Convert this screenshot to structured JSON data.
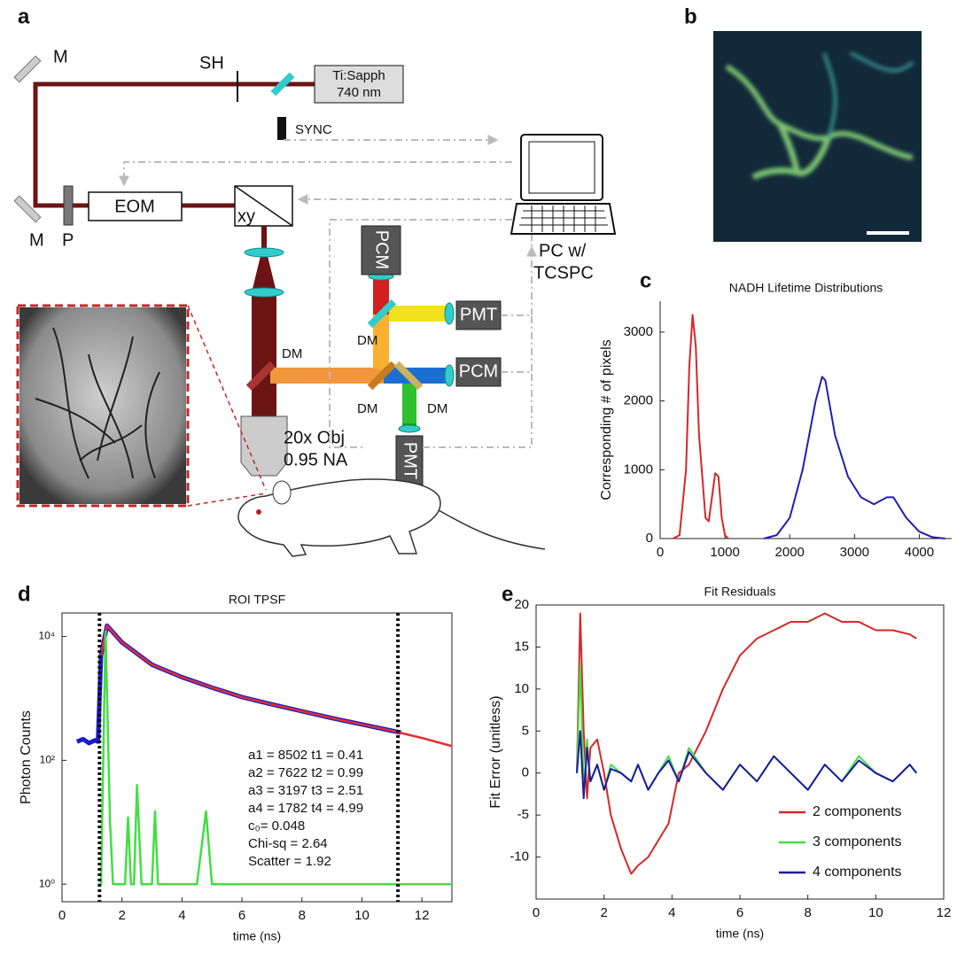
{
  "panel_labels": [
    "a",
    "b",
    "c",
    "d",
    "e"
  ],
  "diagram": {
    "labels": [
      "M",
      "M",
      "SH",
      "Ti:Sapph",
      "740 nm",
      "SYNC",
      "EOM",
      "P",
      "xy",
      "PCM",
      "PMT",
      "PCM",
      "PMT",
      "DM",
      "DM",
      "DM",
      "DM",
      "PC w/",
      "TCSPC",
      "20x Obj",
      "0.95 NA"
    ]
  },
  "chart_data": [
    {
      "type": "line",
      "title": "NADH Lifetime Distributions",
      "y_label": "Corresponding # of pixels",
      "xlim": [
        0,
        4500
      ],
      "xticks": [
        0,
        1000,
        2000,
        3000,
        4000
      ],
      "ylim": [
        0,
        3450
      ],
      "yticks": [
        0,
        1000,
        2000,
        3000
      ],
      "box": false,
      "series": [
        {
          "color": "#d62728",
          "x": [
            200,
            300,
            400,
            450,
            500,
            550,
            600,
            700,
            750,
            800,
            850,
            900,
            950,
            1000,
            1050
          ],
          "values": [
            0,
            50,
            1000,
            2500,
            3250,
            2800,
            1500,
            300,
            250,
            600,
            950,
            900,
            300,
            50,
            0
          ]
        },
        {
          "color": "#1f1fb4",
          "x": [
            1600,
            1800,
            2000,
            2200,
            2400,
            2500,
            2550,
            2700,
            2900,
            3100,
            3300,
            3500,
            3600,
            3800,
            4000,
            4200,
            4400
          ],
          "values": [
            0,
            50,
            300,
            1000,
            2000,
            2350,
            2300,
            1500,
            900,
            600,
            500,
            600,
            600,
            300,
            100,
            20,
            0
          ]
        }
      ]
    },
    {
      "type": "line",
      "title": "ROI TPSF",
      "x_label": "time (ns)",
      "y_label": "Photon Counts",
      "xlim": [
        0,
        13
      ],
      "xticks": [
        0,
        2,
        4,
        6,
        8,
        10,
        12
      ],
      "ylim": [
        0.52,
        24000
      ],
      "log_y": true,
      "yticks": [
        {
          "value": 1,
          "label": "10⁰"
        },
        {
          "value": 100,
          "label": "10²"
        },
        {
          "value": 10000,
          "label": "10⁴"
        }
      ],
      "box": true,
      "vlines": [
        1.25,
        11.2
      ],
      "annotations": [
        "a1 = 8502 t1 = 0.41",
        "a2 = 7622 t2 = 0.99",
        "a3 = 3197 t3 = 2.51",
        "a4 = 1782 t4 = 4.99",
        "c₀= 0.048",
        "Chi-sq = 2.64",
        "Scatter = 1.92"
      ],
      "series": [
        {
          "color": "#1a1acc",
          "width": 5,
          "x": [
            0.5,
            0.7,
            0.9,
            1.1,
            1.2,
            1.3,
            1.5,
            2,
            3,
            4,
            5,
            6,
            7,
            8,
            9,
            10,
            11,
            11.3
          ],
          "values": [
            200,
            220,
            190,
            210,
            200,
            5000,
            15000,
            8000,
            3500,
            2200,
            1500,
            1050,
            800,
            620,
            480,
            380,
            300,
            280
          ]
        },
        {
          "color": "#e03030",
          "width": 2.5,
          "x": [
            1.3,
            1.5,
            2,
            3,
            4,
            5,
            6,
            7,
            8,
            9,
            10,
            11,
            12,
            13
          ],
          "values": [
            5000,
            15000,
            8000,
            3500,
            2200,
            1500,
            1050,
            800,
            620,
            480,
            380,
            300,
            230,
            170
          ]
        },
        {
          "color": "#44dd44",
          "width": 2.5,
          "x": [
            1.2,
            1.3,
            1.45,
            1.6,
            1.7,
            2.1,
            2.2,
            2.3,
            2.4,
            2.5,
            2.65,
            3.0,
            3.1,
            3.2,
            4.5,
            4.8,
            5.0,
            13
          ],
          "values": [
            1,
            1,
            12000,
            10,
            1,
            1,
            12,
            1,
            1,
            40,
            1,
            1,
            15,
            1,
            1,
            15,
            1,
            1
          ]
        }
      ]
    },
    {
      "type": "line",
      "title": "Fit Residuals",
      "x_label": "time (ns)",
      "y_label": "Fit Error (unitless)",
      "xlim": [
        0,
        12
      ],
      "xticks": [
        0,
        2,
        4,
        6,
        8,
        10,
        12
      ],
      "ylim": [
        -15,
        20
      ],
      "yticks": [
        -10,
        -5,
        0,
        5,
        10,
        15,
        20
      ],
      "box": true,
      "legend": "lower right",
      "x": [
        1.2,
        1.3,
        1.4,
        1.5,
        1.6,
        1.8,
        2.0,
        2.2,
        2.5,
        2.8,
        3.0,
        3.3,
        3.6,
        3.9,
        4.2,
        4.5,
        5,
        5.5,
        6,
        6.5,
        7,
        7.5,
        8,
        8.5,
        9,
        9.5,
        10,
        10.5,
        11,
        11.2
      ],
      "series": [
        {
          "name": "2 components",
          "color": "#d62728",
          "values": [
            0,
            19,
            5,
            -3,
            3,
            4,
            0,
            -5,
            -9,
            -12,
            -11,
            -10,
            -8,
            -6,
            0,
            1,
            5,
            10,
            14,
            16,
            17,
            18,
            18,
            19,
            18,
            18,
            17,
            17,
            16.5,
            16
          ]
        },
        {
          "name": "3 components",
          "color": "#44dd44",
          "values": [
            0,
            13,
            -2,
            4,
            -1,
            1,
            -2,
            1,
            0,
            -1,
            1,
            -2,
            0,
            2,
            -1,
            3,
            0,
            -2,
            1,
            -1,
            2,
            0,
            -2,
            1,
            -1,
            2,
            0,
            -1,
            1,
            0
          ]
        },
        {
          "name": "4 components",
          "color": "#1a1aa0",
          "values": [
            0,
            5,
            -3,
            3,
            -1,
            1,
            -2,
            0.5,
            0,
            -1,
            1,
            -2,
            0,
            1.5,
            -1,
            2.5,
            0,
            -2,
            1,
            -1,
            2,
            0,
            -2,
            1,
            -1,
            1.5,
            0,
            -1,
            1,
            0
          ]
        }
      ]
    }
  ]
}
